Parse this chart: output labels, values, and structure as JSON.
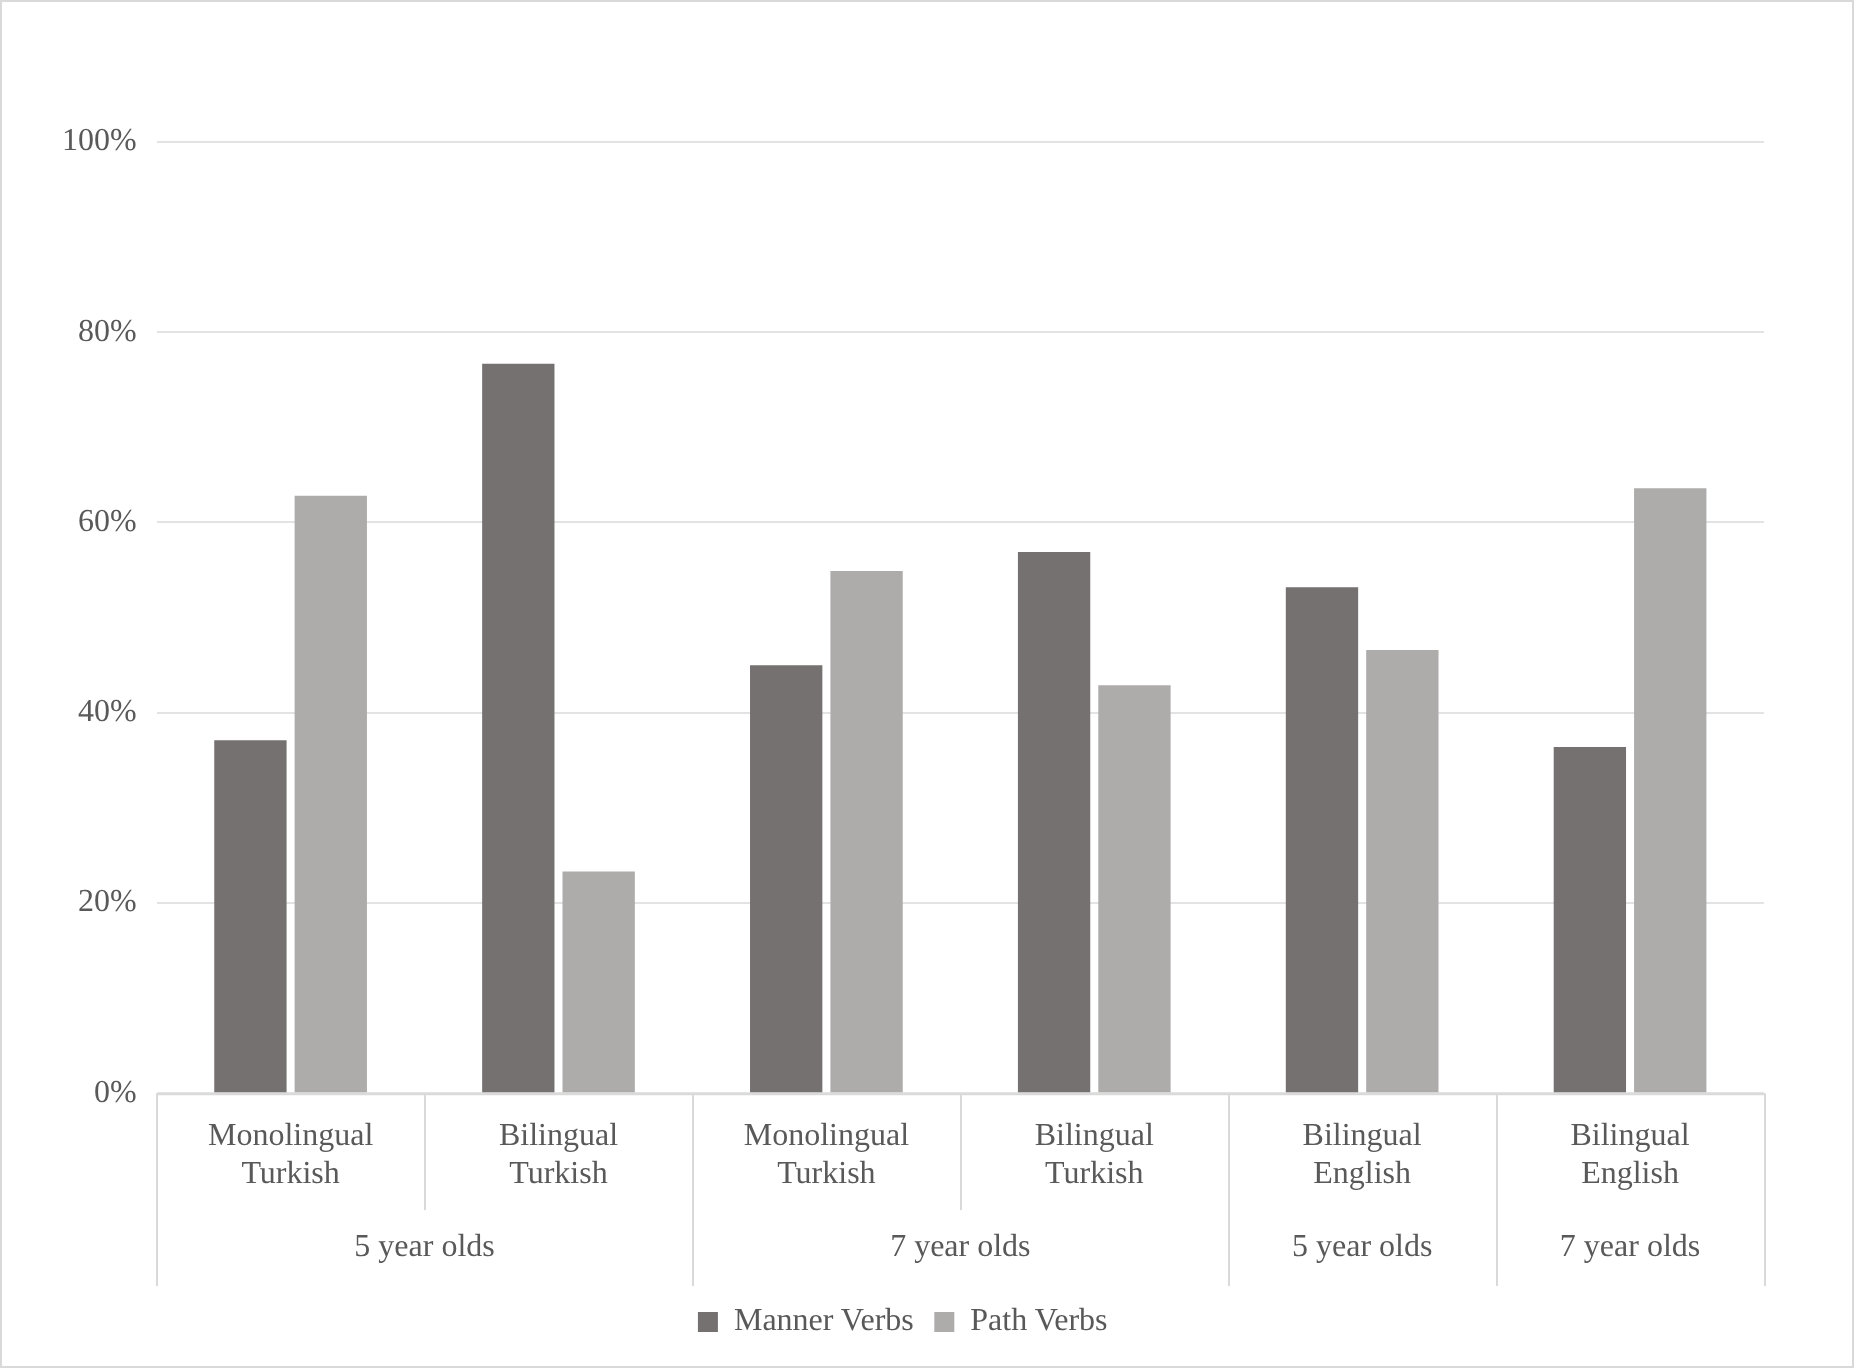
{
  "chart_data": {
    "type": "bar",
    "categories": [
      "Monolingual Turkish",
      "Bilingual Turkish",
      "Monolingual Turkish",
      "Bilingual Turkish",
      "Bilingual English",
      "Bilingual English"
    ],
    "series": [
      {
        "name": "Manner Verbs",
        "color": "#767171",
        "values": [
          37.1,
          76.7,
          45.0,
          56.9,
          53.2,
          36.4
        ]
      },
      {
        "name": "Path Verbs",
        "color": "#aeabab",
        "values": [
          62.8,
          23.3,
          54.9,
          42.9,
          46.6,
          63.6
        ]
      }
    ],
    "ylim": [
      0,
      100
    ],
    "yticks": [
      {
        "value": 0,
        "label": "0%"
      },
      {
        "value": 20,
        "label": "20%"
      },
      {
        "value": 40,
        "label": "40%"
      },
      {
        "value": 60,
        "label": "60%"
      },
      {
        "value": 80,
        "label": "80%"
      },
      {
        "value": 100,
        "label": "100%"
      }
    ],
    "annotations": [
      "5 year olds",
      "7 year olds",
      "5 year olds",
      "7 year olds"
    ],
    "grid": "y",
    "legend": "bottom"
  }
}
